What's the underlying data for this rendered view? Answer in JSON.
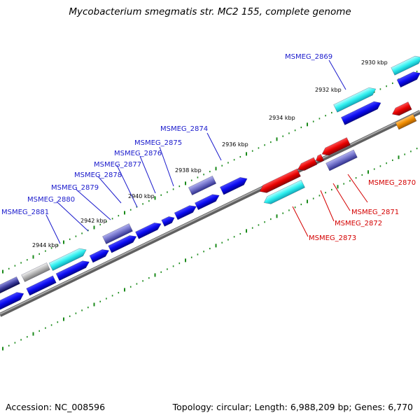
{
  "title": "Mycobacterium smegmatis str. MC2 155, complete genome",
  "footer": {
    "accession": "Accession: NC_008596",
    "summary": "Topology: circular; Length: 6,988,209 bp; Genes: 6,770"
  },
  "colors": {
    "forward_cds": "#0a0af0",
    "rna": "#30f0f0",
    "reverse_cds": "#e80000",
    "pseudo": "#7070c8",
    "other": "#b4b4b4",
    "misc": "#f08c00",
    "backbone": "#808080",
    "ticks": "#1a8a1a",
    "label_forward": "#1a1acc",
    "label_reverse": "#d40000"
  },
  "scale_labels": [
    "2930 kbp",
    "2932 kbp",
    "2934 kbp",
    "2936 kbp",
    "2938 kbp",
    "2940 kbp",
    "2942 kbp",
    "2944 kbp"
  ],
  "gene_labels_forward": [
    "MSMEG_2869",
    "MSMEG_2874",
    "MSMEG_2875",
    "MSMEG_2876",
    "MSMEG_2877",
    "MSMEG_2878",
    "MSMEG_2879",
    "MSMEG_2880",
    "MSMEG_2881"
  ],
  "gene_labels_reverse": [
    "MSMEG_2870",
    "MSMEG_2871",
    "MSMEG_2872",
    "MSMEG_2873"
  ]
}
